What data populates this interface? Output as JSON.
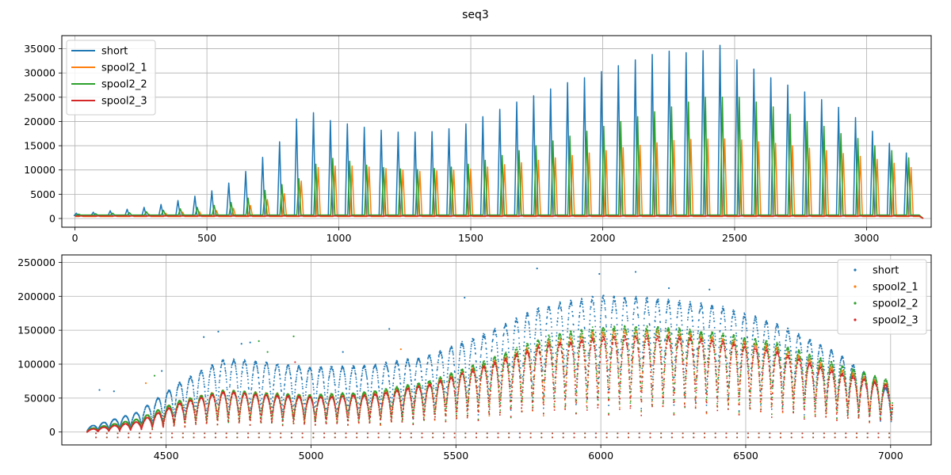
{
  "title": "seq3",
  "colors": {
    "short": "#1f77b4",
    "spool2_1": "#ff7f0e",
    "spool2_2": "#2ca02c",
    "spool2_3": "#d62728"
  },
  "chart_data": [
    {
      "type": "line",
      "title": "seq3",
      "xlim": [
        -50,
        3245
      ],
      "ylim": [
        -1800,
        37700
      ],
      "xticks": [
        0,
        500,
        1000,
        1500,
        2000,
        2500,
        3000
      ],
      "xtick_labels": [
        "0",
        "500",
        "1000",
        "1500",
        "2000",
        "2500",
        "3000"
      ],
      "yticks": [
        0,
        5000,
        10000,
        15000,
        20000,
        25000,
        30000,
        35000
      ],
      "ytick_labels": [
        "0",
        "5000",
        "10000",
        "15000",
        "20000",
        "25000",
        "30000",
        "35000"
      ],
      "grid": true,
      "legend": "top-left",
      "baseline_x_end": 3200,
      "drop_x": 3215,
      "series": [
        {
          "name": "short",
          "baseline": 600,
          "peak_offset": 0,
          "peaks": [
            1100,
            1300,
            1600,
            1900,
            2300,
            2900,
            3700,
            4600,
            5700,
            7300,
            9700,
            12600,
            15800,
            20500,
            21800,
            20200,
            19500,
            18800,
            18200,
            17800,
            17800,
            17900,
            18500,
            19500,
            21000,
            22500,
            24000,
            25300,
            26700,
            28000,
            29000,
            30300,
            31500,
            32700,
            33800,
            34500,
            34200,
            34600,
            35700,
            32700,
            30800,
            29000,
            27500,
            26100,
            24500,
            22900,
            20800,
            18000,
            15500,
            13500
          ]
        },
        {
          "name": "spool2_1",
          "baseline": 400,
          "peak_offset": 18,
          "peaks": [
            600,
            600,
            700,
            700,
            900,
            1100,
            1300,
            1400,
            1600,
            2100,
            2700,
            3900,
            5100,
            7700,
            10500,
            10800,
            10800,
            10600,
            10300,
            10000,
            9700,
            9800,
            10000,
            10200,
            10600,
            11100,
            11500,
            12000,
            12500,
            13000,
            13500,
            14000,
            14600,
            15100,
            15600,
            16100,
            16300,
            16400,
            16400,
            16200,
            15800,
            15500,
            15000,
            14500,
            14000,
            13400,
            12800,
            12200,
            11400,
            10500
          ]
        },
        {
          "name": "spool2_2",
          "baseline": 700,
          "peak_offset": 9,
          "peaks": [
            900,
            1000,
            1100,
            1200,
            1400,
            1700,
            2000,
            2300,
            2700,
            3300,
            4200,
            5800,
            7000,
            8200,
            11200,
            12400,
            11800,
            11000,
            10500,
            10200,
            10100,
            10300,
            10600,
            11200,
            12000,
            13000,
            14000,
            15000,
            16000,
            17000,
            18000,
            19000,
            20000,
            21000,
            22000,
            23000,
            24000,
            25000,
            25000,
            25000,
            24000,
            23000,
            21500,
            20000,
            19000,
            17500,
            16500,
            15000,
            14000,
            12500
          ]
        },
        {
          "name": "spool2_3",
          "baseline": 500,
          "peak_offset": 27,
          "peaks": [
            500,
            500,
            500,
            500,
            500,
            500,
            500,
            500,
            500,
            500,
            500,
            500,
            500,
            500,
            500,
            500,
            500,
            500,
            500,
            500,
            500,
            500,
            500,
            500,
            500,
            500,
            500,
            500,
            500,
            500,
            500,
            500,
            500,
            500,
            500,
            500,
            500,
            500,
            500,
            500,
            500,
            500,
            500,
            500,
            500,
            500,
            500,
            500,
            500,
            500
          ]
        }
      ],
      "peak_x_start": 5,
      "peak_x_step": 64.2
    },
    {
      "type": "scatter",
      "xlim": [
        4140,
        7140
      ],
      "ylim": [
        -19000,
        261000
      ],
      "xticks": [
        4500,
        5000,
        5500,
        6000,
        6500,
        7000
      ],
      "xtick_labels": [
        "4500",
        "5000",
        "5500",
        "6000",
        "6500",
        "7000"
      ],
      "yticks": [
        0,
        50000,
        100000,
        150000,
        200000,
        250000
      ],
      "ytick_labels": [
        "0",
        "50000",
        "100000",
        "150000",
        "200000",
        "250000"
      ],
      "grid": true,
      "legend": "top-right",
      "x_start": 4225,
      "x_end": 7005,
      "period": 37.5,
      "series": [
        {
          "name": "short",
          "env_x": [
            4225,
            4400,
            4550,
            4700,
            4850,
            5000,
            5200,
            5400,
            5600,
            5800,
            6000,
            6200,
            6400,
            6600,
            6800,
            7000
          ],
          "env_y": [
            8000,
            30000,
            75000,
            108000,
            102000,
            95000,
            98000,
            112000,
            145000,
            185000,
            200000,
            195000,
            185000,
            160000,
            120000,
            60000
          ],
          "min_frac": 0.2
        },
        {
          "name": "spool2_1",
          "env_x": [
            4225,
            4400,
            4550,
            4700,
            4850,
            5000,
            5200,
            5400,
            5600,
            5800,
            6000,
            6200,
            6400,
            6600,
            6800,
            7000
          ],
          "env_y": [
            5000,
            20000,
            48000,
            62000,
            58000,
            55000,
            58000,
            72000,
            100000,
            132000,
            148000,
            150000,
            140000,
            125000,
            95000,
            70000
          ],
          "min_frac": 0.2
        },
        {
          "name": "spool2_2",
          "env_x": [
            4225,
            4400,
            4550,
            4700,
            4850,
            5000,
            5200,
            5400,
            5600,
            5800,
            6000,
            6200,
            6400,
            6600,
            6800,
            7000
          ],
          "env_y": [
            5000,
            20000,
            48000,
            62000,
            58000,
            55000,
            60000,
            75000,
            105000,
            140000,
            155000,
            155000,
            147000,
            132000,
            102000,
            75000
          ],
          "min_frac": 0.2
        },
        {
          "name": "spool2_3",
          "env_x": [
            4225,
            4400,
            4550,
            4700,
            4850,
            5000,
            5200,
            5400,
            5600,
            5800,
            6000,
            6200,
            6400,
            6600,
            6800,
            7000
          ],
          "env_y": [
            4000,
            16000,
            44000,
            60000,
            55000,
            52000,
            55000,
            70000,
            98000,
            128000,
            140000,
            142000,
            135000,
            120000,
            90000,
            68000
          ],
          "min_frac": 0.2
        }
      ],
      "outlier_levels": [
        -1000,
        -7000
      ],
      "outliers": [
        {
          "x": 5780,
          "y": 241000,
          "series": "short"
        },
        {
          "x": 5995,
          "y": 233000,
          "series": "short"
        },
        {
          "x": 6120,
          "y": 236000,
          "series": "short"
        },
        {
          "x": 5530,
          "y": 198000,
          "series": "short"
        },
        {
          "x": 6235,
          "y": 212000,
          "series": "short"
        },
        {
          "x": 6375,
          "y": 210000,
          "series": "short"
        },
        {
          "x": 4680,
          "y": 148000,
          "series": "short"
        },
        {
          "x": 4630,
          "y": 140000,
          "series": "short"
        },
        {
          "x": 4760,
          "y": 130000,
          "series": "short"
        },
        {
          "x": 5270,
          "y": 152000,
          "series": "short"
        },
        {
          "x": 4940,
          "y": 141000,
          "series": "spool2_2"
        },
        {
          "x": 4820,
          "y": 134000,
          "series": "spool2_2"
        },
        {
          "x": 4790,
          "y": 132000,
          "series": "short"
        },
        {
          "x": 4850,
          "y": 118000,
          "series": "spool2_2"
        },
        {
          "x": 4945,
          "y": 103000,
          "series": "spool2_3"
        },
        {
          "x": 4485,
          "y": 90000,
          "series": "short"
        },
        {
          "x": 4460,
          "y": 83000,
          "series": "spool2_2"
        },
        {
          "x": 4430,
          "y": 72000,
          "series": "spool2_1"
        },
        {
          "x": 4270,
          "y": 62000,
          "series": "short"
        },
        {
          "x": 4320,
          "y": 60000,
          "series": "short"
        },
        {
          "x": 5110,
          "y": 118000,
          "series": "short"
        },
        {
          "x": 5310,
          "y": 122000,
          "series": "spool2_1"
        }
      ]
    }
  ]
}
